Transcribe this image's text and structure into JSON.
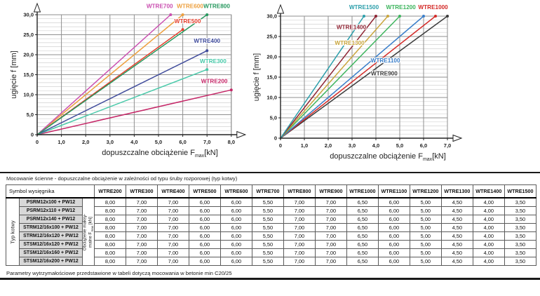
{
  "chart_data": [
    {
      "type": "line",
      "name": "wtre200-800-deflection",
      "ylabel": "ugięcie f [mm]",
      "xlabel": {
        "pre": "dopuszczalne obciążenie F",
        "sub": "max",
        "post": "[kN]"
      },
      "xlim": [
        0,
        8
      ],
      "ylim": [
        0,
        30
      ],
      "grid": "on",
      "xtick_labels": [
        "0",
        "1,0",
        "2,0",
        "3,0",
        "4,0",
        "5,0",
        "6,0",
        "7,0",
        "8,0"
      ],
      "ytick_labels": [
        "0",
        "5,0",
        "10,0",
        "15,0",
        "20,0",
        "25,0",
        "30,0"
      ],
      "series": [
        {
          "name": "WTRE200",
          "color": "#c52868",
          "points": [
            [
              0,
              0
            ],
            [
              8.0,
              11.2
            ]
          ],
          "label_pos": [
            7.3,
            12.9
          ]
        },
        {
          "name": "WTRE300",
          "color": "#49c9a9",
          "points": [
            [
              0,
              0
            ],
            [
              7.0,
              16.3
            ]
          ],
          "label_pos": [
            7.25,
            17.9
          ]
        },
        {
          "name": "WTRE400",
          "color": "#3f4b9b",
          "points": [
            [
              0,
              0
            ],
            [
              7.0,
              21.0
            ]
          ],
          "label_pos": [
            7.0,
            23.0
          ]
        },
        {
          "name": "WTRE500",
          "color": "#e4402e",
          "points": [
            [
              0,
              0
            ],
            [
              6.0,
              26.3
            ]
          ],
          "label_pos": [
            6.2,
            27.9
          ]
        },
        {
          "name": "WTRE600",
          "color": "#eda03f",
          "points": [
            [
              0,
              0
            ],
            [
              6.0,
              30.0
            ]
          ],
          "label_pos": [
            6.3,
            31.7
          ]
        },
        {
          "name": "WTRE700",
          "color": "#ca4fb0",
          "points": [
            [
              0,
              0
            ],
            [
              5.5,
              30.0
            ]
          ],
          "label_pos": [
            5.05,
            31.7
          ]
        },
        {
          "name": "WTRE800",
          "color": "#27985e",
          "points": [
            [
              0,
              0
            ],
            [
              7.0,
              30.0
            ]
          ],
          "label_pos": [
            7.4,
            31.7
          ]
        }
      ]
    },
    {
      "type": "line",
      "name": "wtre900-1500-deflection",
      "ylabel": "ugięcie f [mm]",
      "xlabel": {
        "pre": "dopuszczalne obciążenie F",
        "sub": "max",
        "post": "[kN]"
      },
      "xlim": [
        0,
        7
      ],
      "ylim": [
        0,
        30
      ],
      "grid": "on",
      "xtick_labels": [
        "0",
        "1,0",
        "2,0",
        "3,0",
        "4,0",
        "5,0",
        "6,0",
        "7,0"
      ],
      "ytick_labels": [
        "0",
        "5,0",
        "10,0",
        "15,0",
        "20,0",
        "25,0",
        "30,0"
      ],
      "series": [
        {
          "name": "WTRE900",
          "color": "#3b3b3b",
          "points": [
            [
              0,
              0
            ],
            [
              7.0,
              30.0
            ]
          ],
          "label_pos": [
            4.35,
            15.4
          ]
        },
        {
          "name": "WTRE1000",
          "color": "#d42b28",
          "points": [
            [
              0,
              0
            ],
            [
              6.5,
              30.0
            ]
          ],
          "label_pos": [
            6.4,
            31.7
          ]
        },
        {
          "name": "WTRE1100",
          "color": "#3b7fca",
          "points": [
            [
              0,
              0
            ],
            [
              6.0,
              30.0
            ]
          ],
          "label_pos": [
            4.4,
            18.6
          ]
        },
        {
          "name": "WTRE1200",
          "color": "#3eb55e",
          "points": [
            [
              0,
              0
            ],
            [
              5.0,
              30.0
            ]
          ],
          "label_pos": [
            5.05,
            31.7
          ]
        },
        {
          "name": "WTRE1300",
          "color": "#c9a53d",
          "points": [
            [
              0,
              0
            ],
            [
              4.5,
              30.0
            ]
          ],
          "label_pos": [
            2.9,
            22.9
          ]
        },
        {
          "name": "WTRE1400",
          "color": "#8e2433",
          "points": [
            [
              0,
              0
            ],
            [
              4.0,
              30.0
            ]
          ],
          "label_pos": [
            2.97,
            26.8
          ]
        },
        {
          "name": "WTRE1500",
          "color": "#2d9fab",
          "points": [
            [
              0,
              0
            ],
            [
              3.5,
              30.0
            ]
          ],
          "label_pos": [
            3.5,
            31.7
          ]
        }
      ]
    }
  ],
  "table": {
    "title": "Mocowanie ścienne - dopuszczalne obciążenie w zależności od typu śruby rozporowej (typ kotwy)",
    "corner_header": "Symbol wysięgnika",
    "row_group_label": "Typ kotwy",
    "value_group_label": {
      "line1": "Obciążenie maksy-",
      "line2_pre": "malne F",
      "sub": "max",
      "line2_post": " [kN]"
    },
    "col_headers": [
      "WTRE200",
      "WTRE300",
      "WTRE400",
      "WTRE500",
      "WTRE600",
      "WTRE700",
      "WTRE800",
      "WTRE900",
      "WTRE1000",
      "WTRE1100",
      "WTRE1200",
      "WTRE1300",
      "WTRE1400",
      "WTRE1500"
    ],
    "rows": [
      {
        "label": "PSRM12x100 + PW12",
        "values": [
          "8,00",
          "7,00",
          "7,00",
          "6,00",
          "6,00",
          "5,50",
          "7,00",
          "7,00",
          "6,50",
          "6,00",
          "5,00",
          "4,50",
          "4,00",
          "3,50"
        ]
      },
      {
        "label": "PSRM12x110 + PW12",
        "values": [
          "8,00",
          "7,00",
          "7,00",
          "6,00",
          "6,00",
          "5,50",
          "7,00",
          "7,00",
          "6,50",
          "6,00",
          "5,00",
          "4,50",
          "4,00",
          "3,50"
        ]
      },
      {
        "label": "PSRM12x140 + PW12",
        "values": [
          "8,00",
          "7,00",
          "7,00",
          "6,00",
          "6,00",
          "5,50",
          "7,00",
          "7,00",
          "6,50",
          "6,00",
          "5,00",
          "4,50",
          "4,00",
          "3,50"
        ]
      },
      {
        "label": "STRM12/16x100 + PW12",
        "values": [
          "8,00",
          "7,00",
          "7,00",
          "6,00",
          "6,00",
          "5,50",
          "7,00",
          "7,00",
          "6,50",
          "6,00",
          "5,00",
          "4,50",
          "4,00",
          "3,50"
        ]
      },
      {
        "label": "STRM12/16x120 + PW12",
        "values": [
          "8,00",
          "7,00",
          "7,00",
          "6,00",
          "6,00",
          "5,50",
          "7,00",
          "7,00",
          "6,50",
          "6,00",
          "5,00",
          "4,50",
          "4,00",
          "3,50"
        ]
      },
      {
        "label": "STSM12/16x120 + PW12",
        "values": [
          "8,00",
          "7,00",
          "7,00",
          "6,00",
          "6,00",
          "5,50",
          "7,00",
          "7,00",
          "6,50",
          "6,00",
          "5,00",
          "4,50",
          "4,00",
          "3,50"
        ]
      },
      {
        "label": "STSM12/16x160 + PW12",
        "values": [
          "8,00",
          "7,00",
          "7,00",
          "6,00",
          "6,00",
          "5,50",
          "7,00",
          "7,00",
          "6,50",
          "6,00",
          "5,00",
          "4,50",
          "4,00",
          "3,50"
        ]
      },
      {
        "label": "STSM12/16x200 + PW12",
        "values": [
          "8,00",
          "7,00",
          "7,00",
          "6,00",
          "6,00",
          "5,50",
          "7,00",
          "7,00",
          "6,50",
          "6,00",
          "5,00",
          "4,50",
          "4,00",
          "3,50"
        ]
      }
    ],
    "footnote": "Parametry wytrzymałościowe przedstawione w tabeli dotyczą mocowania w betonie min C20/25"
  }
}
